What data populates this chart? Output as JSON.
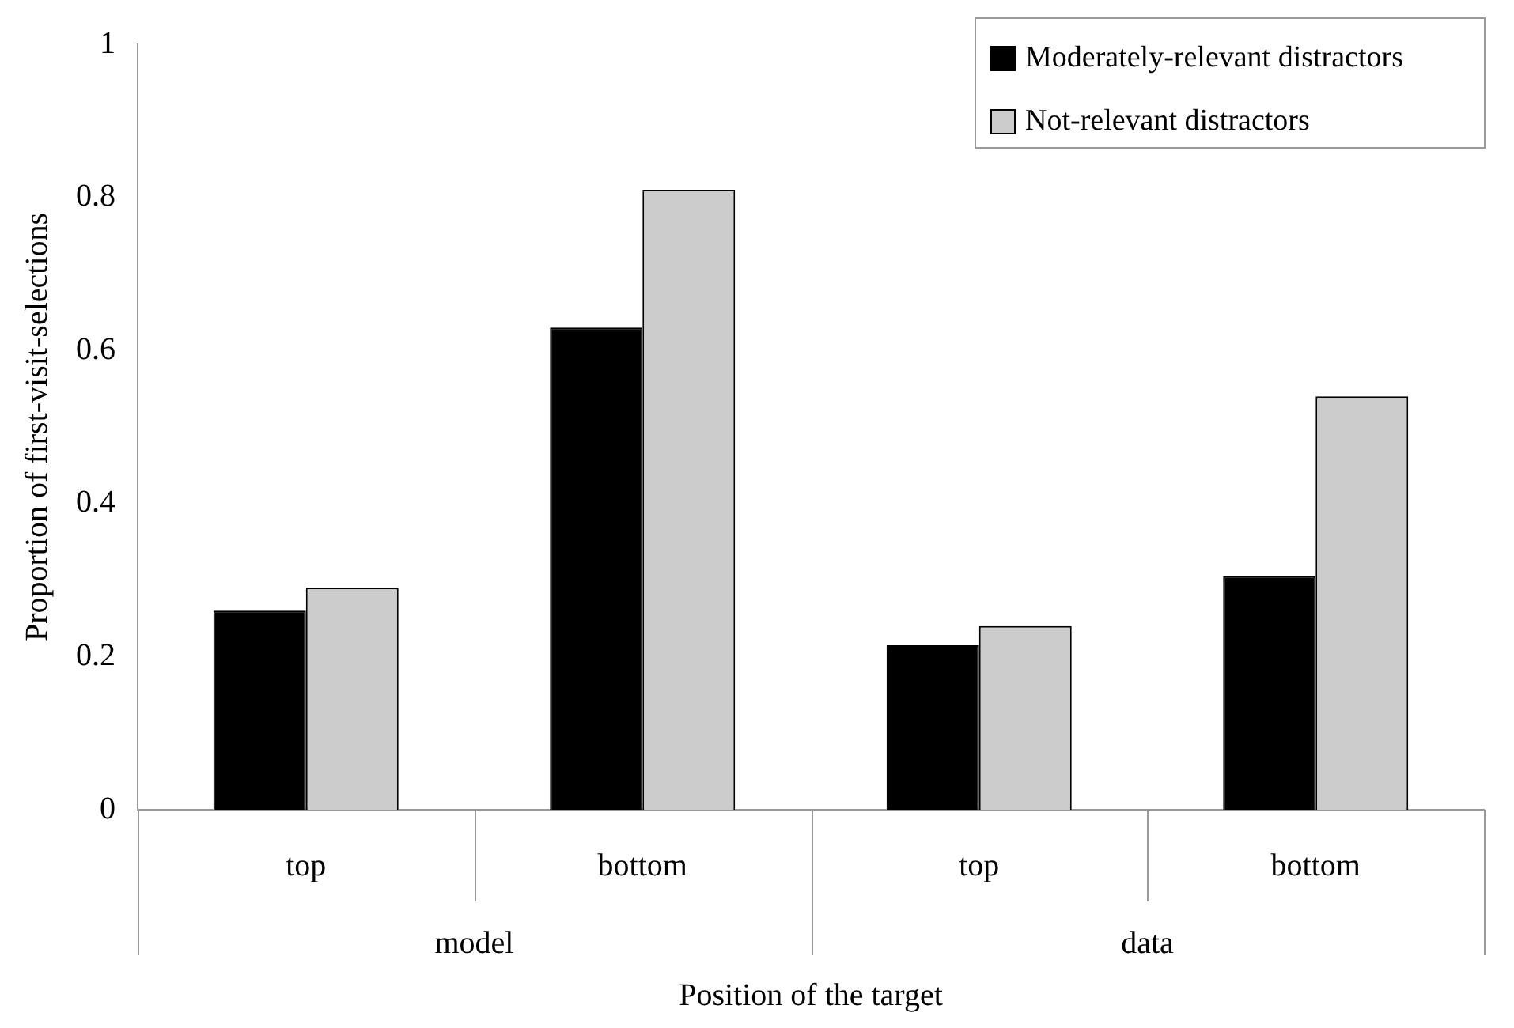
{
  "chart_data": {
    "type": "bar",
    "xlabel": "Position of the target",
    "ylabel": "Proportion of first-visit-selections",
    "categories": [
      "top",
      "bottom",
      "top",
      "bottom"
    ],
    "annotations": [
      "model",
      "data"
    ],
    "series": [
      {
        "name": "Moderately-relevant distractors",
        "color": "#000000",
        "values": [
          0.26,
          0.63,
          0.215,
          0.305
        ]
      },
      {
        "name": "Not-relevant distractors",
        "color": "#cccccc",
        "values": [
          0.29,
          0.81,
          0.24,
          0.54
        ]
      }
    ],
    "ylim": [
      0,
      1
    ],
    "yticks": [
      0,
      0.2,
      0.4,
      0.6,
      0.8,
      1
    ],
    "grid": false,
    "legend": "top right"
  }
}
